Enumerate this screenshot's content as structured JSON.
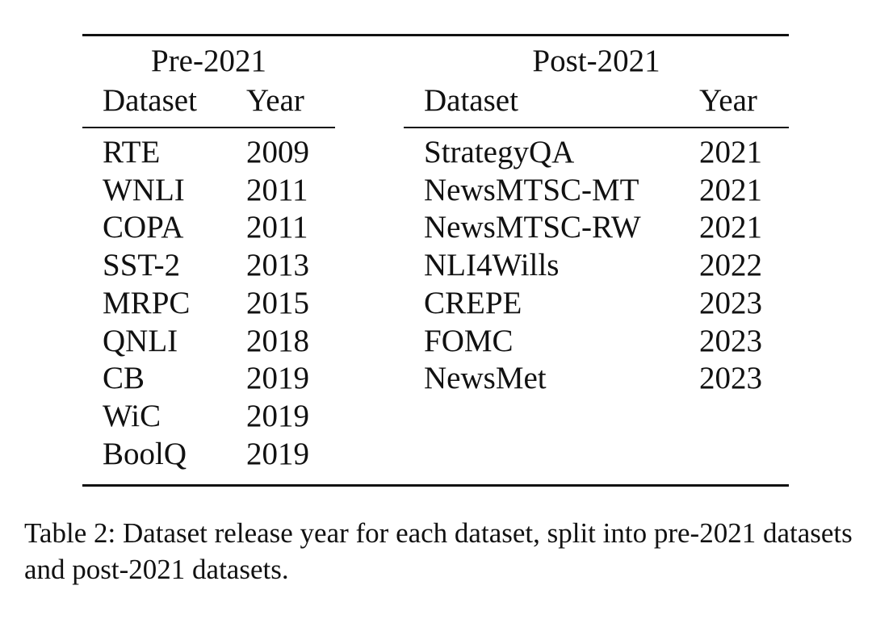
{
  "table": {
    "pre": {
      "group_label": "Pre-2021",
      "headers": {
        "dataset": "Dataset",
        "year": "Year"
      },
      "rows": [
        {
          "dataset": "RTE",
          "year": "2009"
        },
        {
          "dataset": "WNLI",
          "year": "2011"
        },
        {
          "dataset": "COPA",
          "year": "2011"
        },
        {
          "dataset": "SST-2",
          "year": "2013"
        },
        {
          "dataset": "MRPC",
          "year": "2015"
        },
        {
          "dataset": "QNLI",
          "year": "2018"
        },
        {
          "dataset": "CB",
          "year": "2019"
        },
        {
          "dataset": "WiC",
          "year": "2019"
        },
        {
          "dataset": "BoolQ",
          "year": "2019"
        }
      ]
    },
    "post": {
      "group_label": "Post-2021",
      "headers": {
        "dataset": "Dataset",
        "year": "Year"
      },
      "rows": [
        {
          "dataset": "StrategyQA",
          "year": "2021"
        },
        {
          "dataset": "NewsMTSC-MT",
          "year": "2021"
        },
        {
          "dataset": "NewsMTSC-RW",
          "year": "2021"
        },
        {
          "dataset": "NLI4Wills",
          "year": "2022"
        },
        {
          "dataset": "CREPE",
          "year": "2023"
        },
        {
          "dataset": "FOMC",
          "year": "2023"
        },
        {
          "dataset": "NewsMet",
          "year": "2023"
        }
      ]
    }
  },
  "caption": "Table 2: Dataset release year for each dataset, split into pre-2021 datasets and post-2021 datasets."
}
